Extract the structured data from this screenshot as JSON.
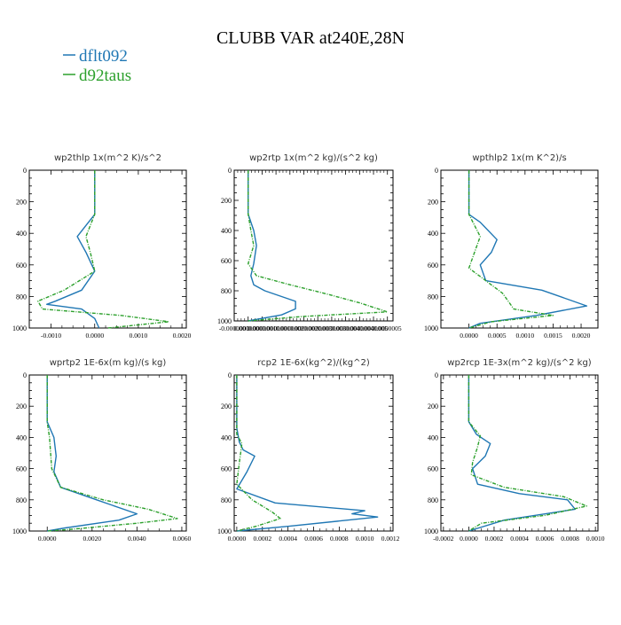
{
  "page": {
    "title": "CLUBB VAR at240E,28N",
    "legend": [
      {
        "name": "dflt092",
        "color": "#1f77b4"
      },
      {
        "name": "d92taus",
        "color": "#2ca02c"
      }
    ]
  },
  "chart_data": [
    {
      "type": "line",
      "title": "wp2thlp 1x(m^2 K)/s^2",
      "xlabel": "",
      "ylabel": "",
      "xlim": [
        -0.0015,
        0.0021
      ],
      "ylim": [
        1000,
        0
      ],
      "xticks": [
        -0.001,
        0.0,
        0.001,
        0.002
      ],
      "xtick_labels": [
        "-0.0010",
        "0.0000",
        "0.0010",
        "0.0020"
      ],
      "yticks": [
        0,
        200,
        400,
        600,
        800,
        1000
      ],
      "ytick_labels": [
        "0",
        "200",
        "400",
        "600",
        "800",
        "1000"
      ],
      "grid": false,
      "series": [
        {
          "name": "dflt092",
          "color": "#1f77b4",
          "dashed": false,
          "x": [
            0.0,
            0.0,
            -0.0002,
            -0.0004,
            -0.0002,
            0.0,
            -0.0003,
            -0.0009,
            -0.0011,
            -0.0003,
            0.0,
            0.0001
          ],
          "y": [
            0,
            280,
            350,
            420,
            520,
            640,
            760,
            830,
            850,
            880,
            940,
            1000
          ]
        },
        {
          "name": "d92taus",
          "color": "#2ca02c",
          "dashed": true,
          "x": [
            0.0,
            0.0,
            -0.0001,
            -0.0002,
            -0.0001,
            0.0,
            -0.0007,
            -0.0013,
            -0.0012,
            0.0006,
            0.0017,
            0.0003
          ],
          "y": [
            0,
            280,
            350,
            420,
            520,
            640,
            760,
            830,
            880,
            920,
            960,
            1000
          ]
        }
      ]
    },
    {
      "type": "line",
      "title": "wp2rtp 1x(m^2 kg)/(s^2 kg)",
      "xlabel": "",
      "ylabel": "",
      "xlim": [
        -5e-08,
        5.2e-07
      ],
      "ylim": [
        1000,
        0
      ],
      "xticks": [
        -5e-08,
        0.0,
        5e-08,
        1e-07,
        1.5e-07,
        2e-07,
        2.5e-07,
        3e-07,
        3.5e-07,
        4e-07,
        4.5e-07,
        5e-07
      ],
      "xtick_labels": [
        "-0.0000001",
        "0.0000000",
        "0.0000001",
        "0.0000001",
        "0.0000002",
        "0.0000002",
        "0.0000003",
        "0.0000003",
        "0.0000004",
        "0.0000004",
        "0.0000005",
        "0.0000005"
      ],
      "yticks": [
        0,
        200,
        400,
        600,
        800,
        1000
      ],
      "ytick_labels": [
        "0",
        "200",
        "400",
        "600",
        "800",
        "1000"
      ],
      "grid": false,
      "series": [
        {
          "name": "dflt092",
          "color": "#1f77b4",
          "dashed": false,
          "x": [
            0.0,
            0.0,
            2e-08,
            3e-08,
            2e-08,
            1e-08,
            2e-08,
            6e-08,
            1.7e-07,
            1.7e-07,
            1.2e-07,
            0.0
          ],
          "y": [
            0,
            290,
            400,
            500,
            620,
            700,
            760,
            800,
            870,
            920,
            960,
            1000
          ]
        },
        {
          "name": "d92taus",
          "color": "#2ca02c",
          "dashed": true,
          "x": [
            0.0,
            0.0,
            1e-08,
            2e-08,
            0.0,
            3e-08,
            1.5e-07,
            2.8e-07,
            4e-07,
            5e-07,
            2e-07,
            0.0
          ],
          "y": [
            0,
            290,
            400,
            500,
            620,
            700,
            760,
            820,
            880,
            940,
            970,
            1000
          ]
        }
      ]
    },
    {
      "type": "line",
      "title": "wpthlp2 1x(m K^2)/s",
      "xlabel": "",
      "ylabel": "",
      "xlim": [
        -0.0005,
        0.0023
      ],
      "ylim": [
        1000,
        0
      ],
      "xticks": [
        0.0,
        0.0005,
        0.001,
        0.0015,
        0.002
      ],
      "xtick_labels": [
        "0.0000",
        "0.0005",
        "0.0010",
        "0.0015",
        "0.0020"
      ],
      "yticks": [
        0,
        200,
        400,
        600,
        800,
        1000
      ],
      "ytick_labels": [
        "0",
        "200",
        "400",
        "600",
        "800",
        "1000"
      ],
      "grid": false,
      "series": [
        {
          "name": "dflt092",
          "color": "#1f77b4",
          "dashed": false,
          "x": [
            0.0,
            0.0,
            0.0002,
            0.0005,
            0.0004,
            0.0002,
            0.0003,
            0.0013,
            0.0021,
            0.0012,
            0.0002,
            0.0
          ],
          "y": [
            0,
            280,
            330,
            440,
            520,
            600,
            700,
            760,
            860,
            920,
            970,
            1000
          ]
        },
        {
          "name": "d92taus",
          "color": "#2ca02c",
          "dashed": true,
          "x": [
            0.0,
            0.0,
            0.0001,
            0.0002,
            0.0001,
            0.0,
            0.0003,
            0.0006,
            0.0008,
            0.0015,
            0.0004,
            0.0
          ],
          "y": [
            0,
            280,
            350,
            420,
            520,
            620,
            700,
            780,
            880,
            920,
            960,
            1000
          ]
        }
      ]
    },
    {
      "type": "line",
      "title": "wprtp2 1E-6x(m kg)/(s kg)",
      "xlabel": "",
      "ylabel": "",
      "xlim": [
        -0.0008,
        0.0062
      ],
      "ylim": [
        1000,
        0
      ],
      "xticks": [
        0.0,
        0.002,
        0.004,
        0.006
      ],
      "xtick_labels": [
        "0.0000",
        "0.0020",
        "0.0040",
        "0.0060"
      ],
      "yticks": [
        0,
        200,
        400,
        600,
        800,
        1000
      ],
      "ytick_labels": [
        "0",
        "200",
        "400",
        "600",
        "800",
        "1000"
      ],
      "grid": false,
      "series": [
        {
          "name": "dflt092",
          "color": "#1f77b4",
          "dashed": false,
          "x": [
            0.0,
            0.0,
            0.0003,
            0.0004,
            0.0003,
            0.0006,
            0.0022,
            0.004,
            0.0032,
            0.0008,
            0.0
          ],
          "y": [
            0,
            300,
            400,
            520,
            620,
            720,
            800,
            890,
            930,
            980,
            1000
          ]
        },
        {
          "name": "d92taus",
          "color": "#2ca02c",
          "dashed": true,
          "x": [
            0.0,
            0.0,
            0.0001,
            0.0002,
            0.0006,
            0.0025,
            0.0045,
            0.0058,
            0.004,
            0.001,
            0.0
          ],
          "y": [
            0,
            300,
            400,
            600,
            720,
            800,
            860,
            920,
            950,
            990,
            1000
          ]
        }
      ]
    },
    {
      "type": "line",
      "title": "rcp2 1E-6x(kg^2)/(kg^2)",
      "xlabel": "",
      "ylabel": "",
      "xlim": [
        -2e-05,
        0.00122
      ],
      "ylim": [
        1000,
        0
      ],
      "xticks": [
        0.0,
        0.0002,
        0.0004,
        0.0006,
        0.0008,
        0.001,
        0.0012
      ],
      "xtick_labels": [
        "0.0000",
        "0.0002",
        "0.0004",
        "0.0006",
        "0.0008",
        "0.0010",
        "0.0012"
      ],
      "yticks": [
        0,
        200,
        400,
        600,
        800,
        1000
      ],
      "ytick_labels": [
        "0",
        "200",
        "400",
        "600",
        "800",
        "1000"
      ],
      "grid": false,
      "series": [
        {
          "name": "dflt092",
          "color": "#1f77b4",
          "dashed": false,
          "x": [
            0.0,
            0.0,
            2e-05,
            5e-05,
            0.00014,
            8e-05,
            0.0,
            0.0003,
            0.001,
            0.0009,
            0.0011,
            0.0004,
            0.0
          ],
          "y": [
            0,
            340,
            430,
            480,
            520,
            620,
            730,
            820,
            870,
            890,
            910,
            970,
            1000
          ]
        },
        {
          "name": "d92taus",
          "color": "#2ca02c",
          "dashed": true,
          "x": [
            0.0,
            0.0,
            4e-05,
            2e-05,
            0.0,
            0.00012,
            0.00028,
            0.00034,
            0.00015,
            0.0
          ],
          "y": [
            0,
            380,
            440,
            560,
            700,
            800,
            880,
            920,
            970,
            1000
          ]
        }
      ]
    },
    {
      "type": "line",
      "title": "wp2rcp 1E-3x(m^2 kg)/(s^2 kg)",
      "xlabel": "",
      "ylabel": "",
      "xlim": [
        -0.00022,
        0.00102
      ],
      "ylim": [
        1000,
        0
      ],
      "xticks": [
        -0.0002,
        0.0,
        0.0002,
        0.0004,
        0.0006,
        0.0008,
        0.001
      ],
      "xtick_labels": [
        "-0.0002",
        "0.0000",
        "0.0002",
        "0.0004",
        "0.0006",
        "0.0008",
        "0.0010"
      ],
      "yticks": [
        0,
        200,
        400,
        600,
        800,
        1000
      ],
      "ytick_labels": [
        "0",
        "200",
        "400",
        "600",
        "800",
        "1000"
      ],
      "grid": false,
      "series": [
        {
          "name": "dflt092",
          "color": "#1f77b4",
          "dashed": false,
          "x": [
            0.0,
            0.0,
            6e-05,
            0.00017,
            0.00013,
            3e-05,
            7e-05,
            0.0004,
            0.00078,
            0.00084,
            0.00028,
            0.0
          ],
          "y": [
            0,
            300,
            380,
            440,
            520,
            600,
            700,
            760,
            800,
            860,
            930,
            1000
          ]
        },
        {
          "name": "d92taus",
          "color": "#2ca02c",
          "dashed": true,
          "x": [
            0.0,
            0.0,
            9e-05,
            7e-05,
            3e-05,
            2e-05,
            0.00028,
            0.00075,
            0.00093,
            0.0006,
            0.0001,
            0.0
          ],
          "y": [
            0,
            300,
            390,
            460,
            560,
            640,
            720,
            780,
            840,
            900,
            950,
            1000
          ]
        }
      ]
    }
  ]
}
